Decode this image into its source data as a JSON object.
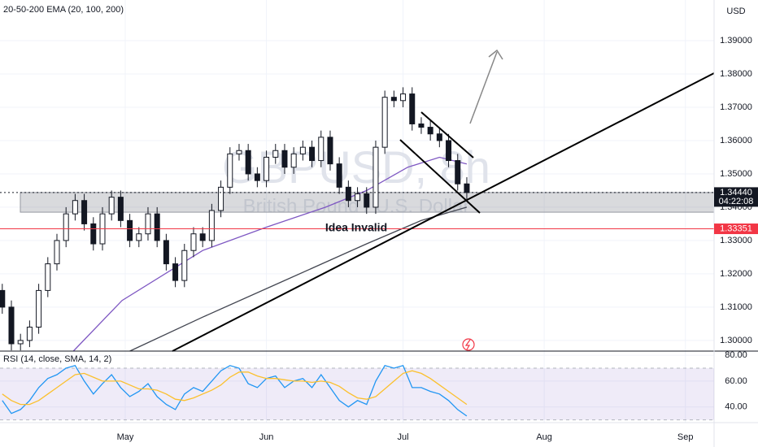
{
  "chart_data": [
    {
      "type": "candlestick",
      "title": "20-50-200 EMA (20, 100, 200)",
      "watermark": "GBPUSD, 8h",
      "subtitle": "British Pound / U.S. Dollar",
      "y_axis_label": "USD",
      "color": "#131722",
      "x": [
        3,
        5,
        7,
        9,
        11,
        13,
        15,
        17,
        19,
        21,
        23,
        25,
        27,
        29,
        31,
        33,
        35,
        37,
        39,
        41,
        43,
        45,
        47,
        49,
        51,
        53,
        55,
        57,
        59,
        61,
        63,
        65,
        67,
        69,
        71,
        73,
        75,
        77,
        79,
        81,
        83,
        85,
        87,
        89,
        91,
        93,
        95,
        97,
        99,
        101,
        103,
        105
      ],
      "open": [
        1.315,
        1.31,
        1.299,
        1.3,
        1.304,
        1.315,
        1.323,
        1.33,
        1.338,
        1.342,
        1.335,
        1.329,
        1.338,
        1.343,
        1.336,
        1.33,
        1.332,
        1.338,
        1.33,
        1.323,
        1.318,
        1.327,
        1.332,
        1.33,
        1.339,
        1.346,
        1.356,
        1.357,
        1.35,
        1.348,
        1.355,
        1.357,
        1.352,
        1.356,
        1.358,
        1.354,
        1.361,
        1.353,
        1.346,
        1.342,
        1.344,
        1.34,
        1.358,
        1.373,
        1.372,
        1.374,
        1.365,
        1.364,
        1.362,
        1.36,
        1.354,
        1.347
      ],
      "high": [
        1.317,
        1.312,
        1.302,
        1.306,
        1.317,
        1.325,
        1.332,
        1.34,
        1.344,
        1.344,
        1.337,
        1.34,
        1.345,
        1.345,
        1.338,
        1.334,
        1.34,
        1.34,
        1.332,
        1.325,
        1.329,
        1.334,
        1.334,
        1.341,
        1.348,
        1.358,
        1.359,
        1.359,
        1.352,
        1.357,
        1.359,
        1.359,
        1.358,
        1.36,
        1.36,
        1.363,
        1.363,
        1.355,
        1.348,
        1.346,
        1.346,
        1.36,
        1.375,
        1.375,
        1.376,
        1.376,
        1.367,
        1.366,
        1.364,
        1.362,
        1.356,
        1.349
      ],
      "low": [
        1.308,
        1.297,
        1.297,
        1.298,
        1.302,
        1.313,
        1.321,
        1.328,
        1.336,
        1.333,
        1.327,
        1.327,
        1.336,
        1.334,
        1.328,
        1.328,
        1.33,
        1.328,
        1.321,
        1.316,
        1.316,
        1.325,
        1.328,
        1.328,
        1.337,
        1.344,
        1.354,
        1.348,
        1.346,
        1.346,
        1.353,
        1.35,
        1.35,
        1.354,
        1.352,
        1.352,
        1.351,
        1.344,
        1.34,
        1.34,
        1.338,
        1.338,
        1.356,
        1.37,
        1.37,
        1.363,
        1.362,
        1.36,
        1.358,
        1.352,
        1.345,
        1.3424
      ],
      "close": [
        1.31,
        1.299,
        1.3,
        1.304,
        1.315,
        1.323,
        1.33,
        1.338,
        1.342,
        1.335,
        1.329,
        1.338,
        1.343,
        1.336,
        1.33,
        1.332,
        1.338,
        1.33,
        1.323,
        1.318,
        1.327,
        1.332,
        1.33,
        1.339,
        1.346,
        1.356,
        1.357,
        1.35,
        1.348,
        1.355,
        1.357,
        1.352,
        1.356,
        1.358,
        1.354,
        1.361,
        1.353,
        1.346,
        1.342,
        1.344,
        1.34,
        1.358,
        1.373,
        1.372,
        1.374,
        1.365,
        1.364,
        1.362,
        1.36,
        1.354,
        1.347,
        1.3444
      ],
      "series": [
        {
          "color": "#7e57c2",
          "x": [
            18.6,
            29.3,
            47,
            61,
            74,
            83,
            92,
            99,
            105
          ],
          "values": [
            1.2968,
            1.312,
            1.327,
            1.334,
            1.34,
            1.345,
            1.352,
            1.355,
            1.353
          ]
        },
        {
          "color": "#434651",
          "x": [
            31,
            47,
            65,
            83,
            95,
            105
          ],
          "values": [
            1.2968,
            1.307,
            1.318,
            1.329,
            1.336,
            1.34
          ]
        }
      ],
      "zone": [
        1.3385,
        1.3444
      ],
      "price_tags": [
        {
          "value": 1.3444,
          "label": "1.34440",
          "countdown": "04:22:08",
          "color": "#131722"
        },
        {
          "value": 1.33351,
          "label": "1.33351",
          "color": "#f23645"
        }
      ],
      "annotation": "Idea Invalid",
      "xlim": [
        2.5,
        159.3
      ],
      "xticks": [
        {
          "value": 30,
          "label": "May"
        },
        {
          "value": 61,
          "label": "Jun"
        },
        {
          "value": 91,
          "label": "Jul"
        },
        {
          "value": 122,
          "label": "Aug"
        },
        {
          "value": 153,
          "label": "Sep"
        }
      ],
      "ylim": [
        1.2968,
        1.4022
      ],
      "yticks": [
        {
          "value": 1.39,
          "label": "1.39000"
        },
        {
          "value": 1.38,
          "label": "1.38000"
        },
        {
          "value": 1.37,
          "label": "1.37000"
        },
        {
          "value": 1.36,
          "label": "1.36000"
        },
        {
          "value": 1.35,
          "label": "1.35000"
        },
        {
          "value": 1.34,
          "label": "1.34000"
        },
        {
          "value": 1.33,
          "label": "1.33000"
        },
        {
          "value": 1.32,
          "label": "1.32000"
        },
        {
          "value": 1.31,
          "label": "1.31000"
        },
        {
          "value": 1.3,
          "label": "1.30000"
        }
      ],
      "grid": true
    },
    {
      "type": "line",
      "title": "RSI (14, close, SMA, 14, 2)",
      "x": [
        3,
        5,
        7,
        9,
        11,
        13,
        15,
        17,
        19,
        21,
        23,
        25,
        27,
        29,
        31,
        33,
        35,
        37,
        39,
        41,
        43,
        45,
        47,
        49,
        51,
        53,
        55,
        57,
        59,
        61,
        63,
        65,
        67,
        69,
        71,
        73,
        75,
        77,
        79,
        81,
        83,
        85,
        87,
        89,
        91,
        93,
        95,
        97,
        99,
        101,
        103,
        105
      ],
      "series": [
        {
          "color": "#2196f3",
          "values": [
            45,
            35,
            38,
            45,
            55,
            62,
            65,
            70,
            72,
            60,
            50,
            58,
            65,
            55,
            48,
            52,
            58,
            48,
            42,
            38,
            50,
            55,
            52,
            60,
            68,
            72,
            70,
            58,
            55,
            62,
            64,
            55,
            60,
            62,
            55,
            65,
            55,
            45,
            40,
            45,
            42,
            60,
            72,
            70,
            72,
            55,
            55,
            52,
            50,
            45,
            38,
            33
          ]
        },
        {
          "color": "#fbc02d",
          "values": [
            50,
            45,
            42,
            42,
            45,
            50,
            55,
            60,
            65,
            66,
            63,
            60,
            60,
            60,
            57,
            54,
            54,
            53,
            50,
            46,
            45,
            47,
            50,
            53,
            57,
            63,
            67,
            67,
            64,
            62,
            62,
            61,
            60,
            60,
            59,
            60,
            59,
            56,
            51,
            47,
            46,
            48,
            54,
            60,
            66,
            68,
            66,
            62,
            57,
            52,
            47,
            42
          ]
        }
      ],
      "band": [
        30,
        70
      ],
      "xlim": [
        2.5,
        159.3
      ],
      "ylim": [
        27.9,
        83.2
      ],
      "yticks": [
        {
          "value": 80,
          "label": "80.00"
        },
        {
          "value": 60,
          "label": "60.00"
        },
        {
          "value": 40,
          "label": "40.00"
        }
      ],
      "grid": true
    }
  ]
}
